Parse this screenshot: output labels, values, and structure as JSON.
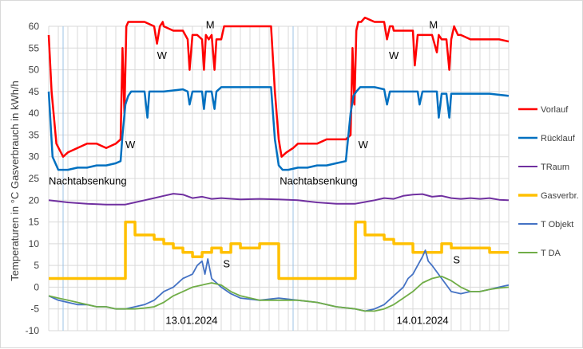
{
  "chart_data": {
    "type": "line",
    "ylabel": "Temperaturen in °C   Gasverbrauch  in kWh/h",
    "ylim": [
      -10,
      60
    ],
    "yticks": [
      -10,
      -5,
      0,
      5,
      10,
      15,
      20,
      25,
      30,
      35,
      40,
      45,
      50,
      55,
      60
    ],
    "x_unit": "hours since 00:00 of 12.01.2024",
    "xlim": [
      0,
      48
    ],
    "grid": true,
    "legend_position": "right",
    "series": [
      {
        "name": "Vorlauf",
        "color": "#ff0000",
        "width": 2.5,
        "x": [
          0,
          0.3,
          0.8,
          1.5,
          2,
          3,
          4,
          5,
          6,
          7,
          7.5,
          7.7,
          7.9,
          8.1,
          8.3,
          8.6,
          9,
          10,
          11,
          11.3,
          11.6,
          11.9,
          12,
          13,
          14,
          14.5,
          14.7,
          15,
          15.5,
          16,
          16.2,
          16.4,
          16.7,
          17,
          17.3,
          17.5,
          18,
          18.3,
          19,
          21,
          23.2,
          23.6,
          24,
          24.3,
          24.8,
          25.5,
          26,
          27,
          28,
          29,
          30,
          31,
          31.5,
          31.7,
          31.9,
          32.1,
          32.3,
          32.6,
          33,
          34,
          35,
          35.3,
          35.6,
          35.9,
          36,
          37,
          38,
          38.2,
          38.5,
          39,
          40,
          40.5,
          40.7,
          41,
          41.5,
          41.8,
          42,
          42.3,
          42.7,
          43,
          44,
          45,
          46,
          47,
          48
        ],
        "y": [
          58,
          45,
          33,
          30,
          31,
          32,
          33,
          33,
          32,
          33,
          34,
          55,
          40,
          60,
          61,
          61,
          61,
          61,
          60,
          56,
          60,
          61,
          60,
          59,
          59,
          57,
          50,
          58,
          58,
          57,
          50,
          58,
          57,
          58,
          50,
          57,
          57,
          60,
          60,
          60,
          60,
          45,
          34,
          30,
          31,
          32,
          33,
          33,
          33,
          34,
          34,
          34,
          35,
          55,
          42,
          59,
          61,
          61,
          62,
          61,
          61,
          57,
          60,
          60,
          59,
          59,
          59,
          51,
          58,
          58,
          58,
          54,
          58,
          57,
          57,
          50,
          57,
          60,
          58,
          58,
          57,
          57,
          57,
          57,
          56.5
        ]
      },
      {
        "name": "Rücklauf",
        "color": "#0070c0",
        "width": 2.5,
        "x": [
          0,
          0.4,
          1,
          2,
          3,
          4,
          5,
          6,
          7,
          7.5,
          7.7,
          8,
          8.3,
          8.6,
          9,
          9.5,
          10,
          10.3,
          10.5,
          10.7,
          11,
          12,
          14,
          14.5,
          14.7,
          15,
          16,
          16.2,
          16.4,
          17,
          17.3,
          17.5,
          18,
          20,
          22,
          23.2,
          23.6,
          24,
          24.4,
          25,
          26,
          27,
          28,
          29,
          30,
          31,
          31.5,
          31.8,
          32.1,
          32.5,
          33,
          34,
          35,
          35.3,
          35.6,
          36,
          37,
          38,
          38.5,
          38.7,
          39,
          40,
          40.5,
          40.7,
          41,
          41.5,
          41.8,
          42,
          43,
          44,
          46,
          48
        ],
        "y": [
          45,
          30,
          27,
          27,
          27.5,
          27.5,
          28,
          28,
          28.5,
          29,
          35,
          42,
          44,
          45,
          45,
          45,
          45,
          39,
          45,
          45,
          45,
          45,
          45.5,
          45,
          42,
          45,
          45,
          41,
          45,
          45,
          41,
          45,
          46,
          46,
          46,
          46,
          34,
          28,
          27,
          27,
          27.5,
          27.5,
          28,
          28,
          28.5,
          29,
          40,
          44,
          45,
          46,
          46,
          46,
          45.5,
          42,
          45,
          45,
          45,
          45,
          45,
          42,
          45,
          45,
          45,
          39,
          44.5,
          44.5,
          39,
          44.5,
          44.5,
          44.5,
          44.5,
          44
        ]
      },
      {
        "name": "TRaum",
        "color": "#7030a0",
        "width": 2,
        "x": [
          0,
          2,
          4,
          6,
          8,
          9,
          10,
          11,
          12,
          13,
          14,
          15,
          16,
          17,
          18,
          20,
          22,
          24,
          26,
          28,
          30,
          32,
          33,
          34,
          35,
          36,
          37,
          38,
          39,
          40,
          41,
          42,
          43,
          44,
          45,
          46,
          47,
          48
        ],
        "y": [
          20,
          19.5,
          19.2,
          19,
          19,
          19.5,
          20,
          20.5,
          21,
          21.5,
          21.3,
          20.5,
          20.8,
          20.3,
          20.5,
          20.2,
          20.3,
          20.2,
          20,
          19.5,
          19.2,
          19.2,
          19.6,
          20,
          20.5,
          20.3,
          21,
          21.3,
          21.4,
          20.8,
          21,
          20.5,
          20.3,
          20.5,
          20.3,
          20.5,
          20.1,
          20
        ]
      },
      {
        "name": "Gasverbr.",
        "color": "#ffc000",
        "width": 3.5,
        "x": [
          0,
          8,
          8.01,
          9,
          9.01,
          11,
          11.01,
          12,
          12.01,
          13,
          13.01,
          14,
          14.01,
          15,
          15.01,
          16,
          16.01,
          17,
          17.01,
          18,
          18.01,
          19,
          19.01,
          20,
          20.01,
          22,
          22.01,
          24,
          24.01,
          32,
          32.01,
          33,
          33.01,
          35,
          35.01,
          36,
          36.01,
          38,
          38.01,
          40,
          40.01,
          41,
          41.01,
          42,
          42.01,
          44,
          44.01,
          46,
          46.01,
          48
        ],
        "y": [
          2,
          2,
          15,
          15,
          12,
          12,
          11,
          11,
          10,
          10,
          9,
          9,
          8,
          8,
          7,
          7,
          8,
          8,
          9,
          9,
          8,
          8,
          10,
          10,
          9,
          9,
          10,
          10,
          2,
          2,
          15,
          15,
          12,
          12,
          11,
          11,
          10,
          10,
          8,
          8,
          8,
          8,
          10,
          10,
          9,
          9,
          9,
          9,
          8,
          8
        ]
      },
      {
        "name": "T Objekt",
        "color": "#4472c4",
        "width": 1.8,
        "x": [
          0,
          1,
          2,
          3,
          4,
          5,
          6,
          7,
          8,
          9,
          10,
          11,
          12,
          13,
          14,
          14.5,
          15,
          15.5,
          16,
          16.3,
          16.6,
          17,
          18,
          19,
          20,
          22,
          24,
          26,
          28,
          30,
          32,
          33,
          34,
          35,
          36,
          37,
          37.5,
          38,
          38.5,
          39,
          39.3,
          39.6,
          40,
          41,
          42,
          43,
          44,
          45,
          46,
          47,
          48
        ],
        "y": [
          -2,
          -3,
          -3.5,
          -4,
          -4,
          -4.5,
          -4.5,
          -5,
          -5,
          -4.5,
          -4,
          -3,
          -1,
          0,
          2,
          2.5,
          3,
          5,
          6,
          3,
          6.5,
          2,
          0,
          -1.5,
          -2.5,
          -3,
          -2.5,
          -3,
          -3.5,
          -4.5,
          -5,
          -5.5,
          -5,
          -4,
          -2,
          0,
          2,
          3,
          5,
          7,
          8.5,
          6,
          5,
          2,
          -1,
          -1.5,
          -1,
          -1,
          -0.5,
          0,
          0.5
        ]
      },
      {
        "name": "T DA",
        "color": "#70ad47",
        "width": 1.8,
        "x": [
          0,
          1,
          2,
          3,
          4,
          5,
          6,
          7,
          8,
          9,
          10,
          11,
          12,
          13,
          14,
          15,
          16,
          17,
          18,
          19,
          20,
          22,
          24,
          26,
          28,
          30,
          32,
          33,
          34,
          35,
          36,
          37,
          38,
          39,
          40,
          41,
          42,
          43,
          44,
          45,
          46,
          47,
          48
        ],
        "y": [
          -2,
          -2.5,
          -3,
          -3.5,
          -4,
          -4.5,
          -4.5,
          -5,
          -5,
          -5,
          -4.8,
          -4.5,
          -3.5,
          -2,
          -1,
          0,
          0.5,
          1,
          0.5,
          -1,
          -2,
          -3,
          -3,
          -3,
          -3.5,
          -4.5,
          -5,
          -5.5,
          -5.5,
          -5,
          -4,
          -2.5,
          -1,
          1,
          2,
          2.5,
          1.5,
          0,
          -1,
          -1,
          -0.5,
          -0.2,
          0
        ]
      }
    ],
    "annotations": [
      {
        "text": "W",
        "x": 11.3,
        "y": 52.5
      },
      {
        "text": "M",
        "x": 16.4,
        "y": 59.5
      },
      {
        "text": "W",
        "x": 8,
        "y": 32
      },
      {
        "text": "Nachtabsenkung",
        "x": 0,
        "y": 23.6
      },
      {
        "text": "S",
        "x": 18.2,
        "y": 4.6
      },
      {
        "text": "13.01.2024",
        "x": 12.2,
        "y": -8.4
      },
      {
        "text": "W",
        "x": 35.5,
        "y": 52.5
      },
      {
        "text": "M",
        "x": 39.7,
        "y": 59.5
      },
      {
        "text": "W",
        "x": 32.3,
        "y": 32
      },
      {
        "text": "Nachtabsenkung",
        "x": 24.1,
        "y": 23.6
      },
      {
        "text": "S",
        "x": 42.2,
        "y": 5.5
      },
      {
        "text": "14.01.2024",
        "x": 36.3,
        "y": -8.4
      }
    ],
    "vertical_markers": [
      1.5,
      25.5
    ]
  }
}
